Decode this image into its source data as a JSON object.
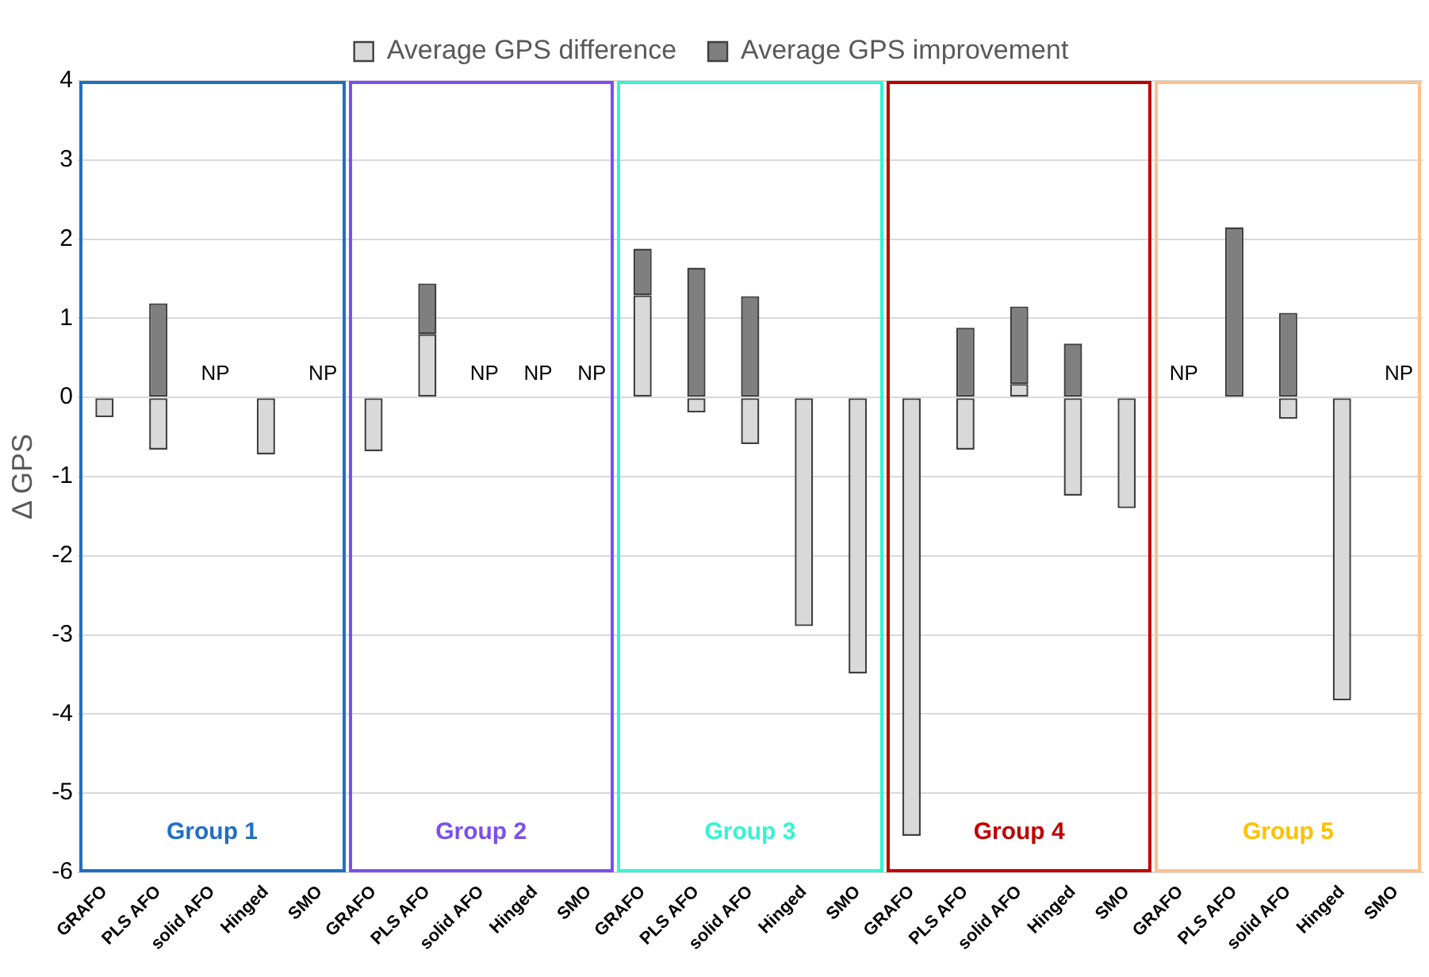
{
  "chart_data": {
    "type": "bar",
    "stacked": true,
    "ylabel": "Δ GPS",
    "categories": [
      "GRAFO",
      "PLS AFO",
      "solid AFO",
      "Hinged",
      "SMO",
      "GRAFO",
      "PLS AFO",
      "solid AFO",
      "Hinged",
      "SMO",
      "GRAFO",
      "PLS AFO",
      "solid AFO",
      "Hinged",
      "SMO",
      "GRAFO",
      "PLS AFO",
      "solid AFO",
      "Hinged",
      "SMO",
      "GRAFO",
      "PLS AFO",
      "solid AFO",
      "Hinged",
      "SMO"
    ],
    "series": [
      {
        "name": "Average GPS difference",
        "color": "#d9d9d9",
        "values": [
          -0.25,
          -0.66,
          null,
          -0.72,
          null,
          -0.68,
          0.8,
          null,
          null,
          null,
          1.29,
          -0.19,
          -0.59,
          -2.89,
          -3.49,
          -5.54,
          -0.66,
          0.17,
          -1.24,
          -1.4,
          null,
          null,
          -0.27,
          -3.83,
          null
        ],
        "value_labels": [
          null,
          null,
          "NP",
          null,
          "NP",
          null,
          null,
          "NP",
          "NP",
          "NP",
          null,
          null,
          null,
          null,
          null,
          null,
          null,
          null,
          null,
          null,
          "NP",
          null,
          null,
          null,
          "NP"
        ]
      },
      {
        "name": "Average GPS improvement",
        "color": "#7f7f7f",
        "values": [
          null,
          1.19,
          null,
          null,
          null,
          null,
          0.64,
          null,
          null,
          null,
          0.59,
          1.64,
          1.28,
          null,
          null,
          null,
          0.88,
          0.98,
          0.68,
          null,
          null,
          2.15,
          1.07,
          null,
          null
        ]
      }
    ],
    "ylim": [
      -6,
      4
    ],
    "yticks": [
      -6,
      -5,
      -4,
      -3,
      -2,
      -1,
      0,
      1,
      2,
      3,
      4
    ],
    "grid": "y",
    "legend": "top",
    "annotations": [
      "Group 1",
      "Group 2",
      "Group 3",
      "Group 4",
      "Group 5"
    ]
  }
}
